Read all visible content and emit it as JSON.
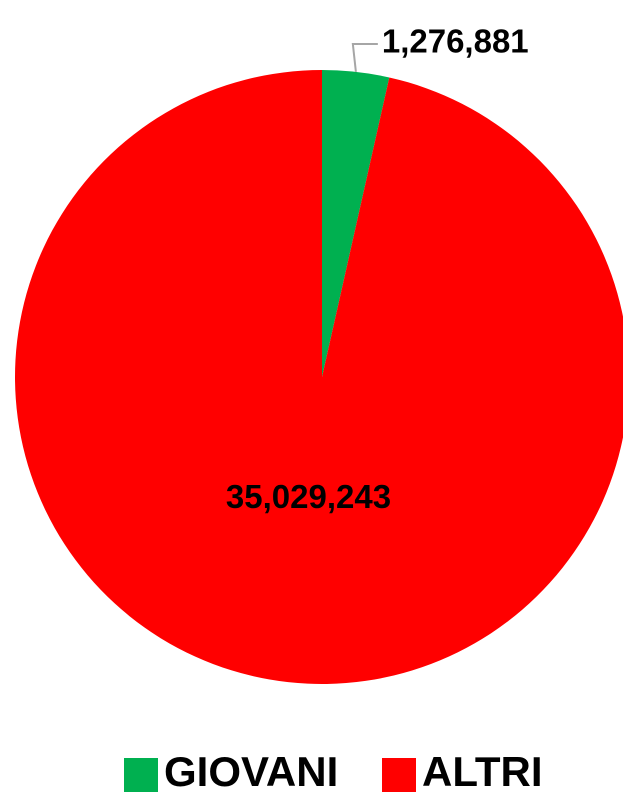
{
  "chart_data": {
    "type": "pie",
    "categories": [
      "GIOVANI",
      "ALTRI"
    ],
    "values": [
      1276881,
      35029243
    ],
    "data_labels": [
      "1,276,881",
      "35,029,243"
    ],
    "colors": [
      "#00b050",
      "#ff0000"
    ],
    "start_angle": "12 o'clock",
    "direction": "clockwise",
    "legend": {
      "position": "bottom",
      "entries": [
        {
          "label": "GIOVANI",
          "color": "#00b050"
        },
        {
          "label": "ALTRI",
          "color": "#ff0000"
        }
      ]
    }
  }
}
